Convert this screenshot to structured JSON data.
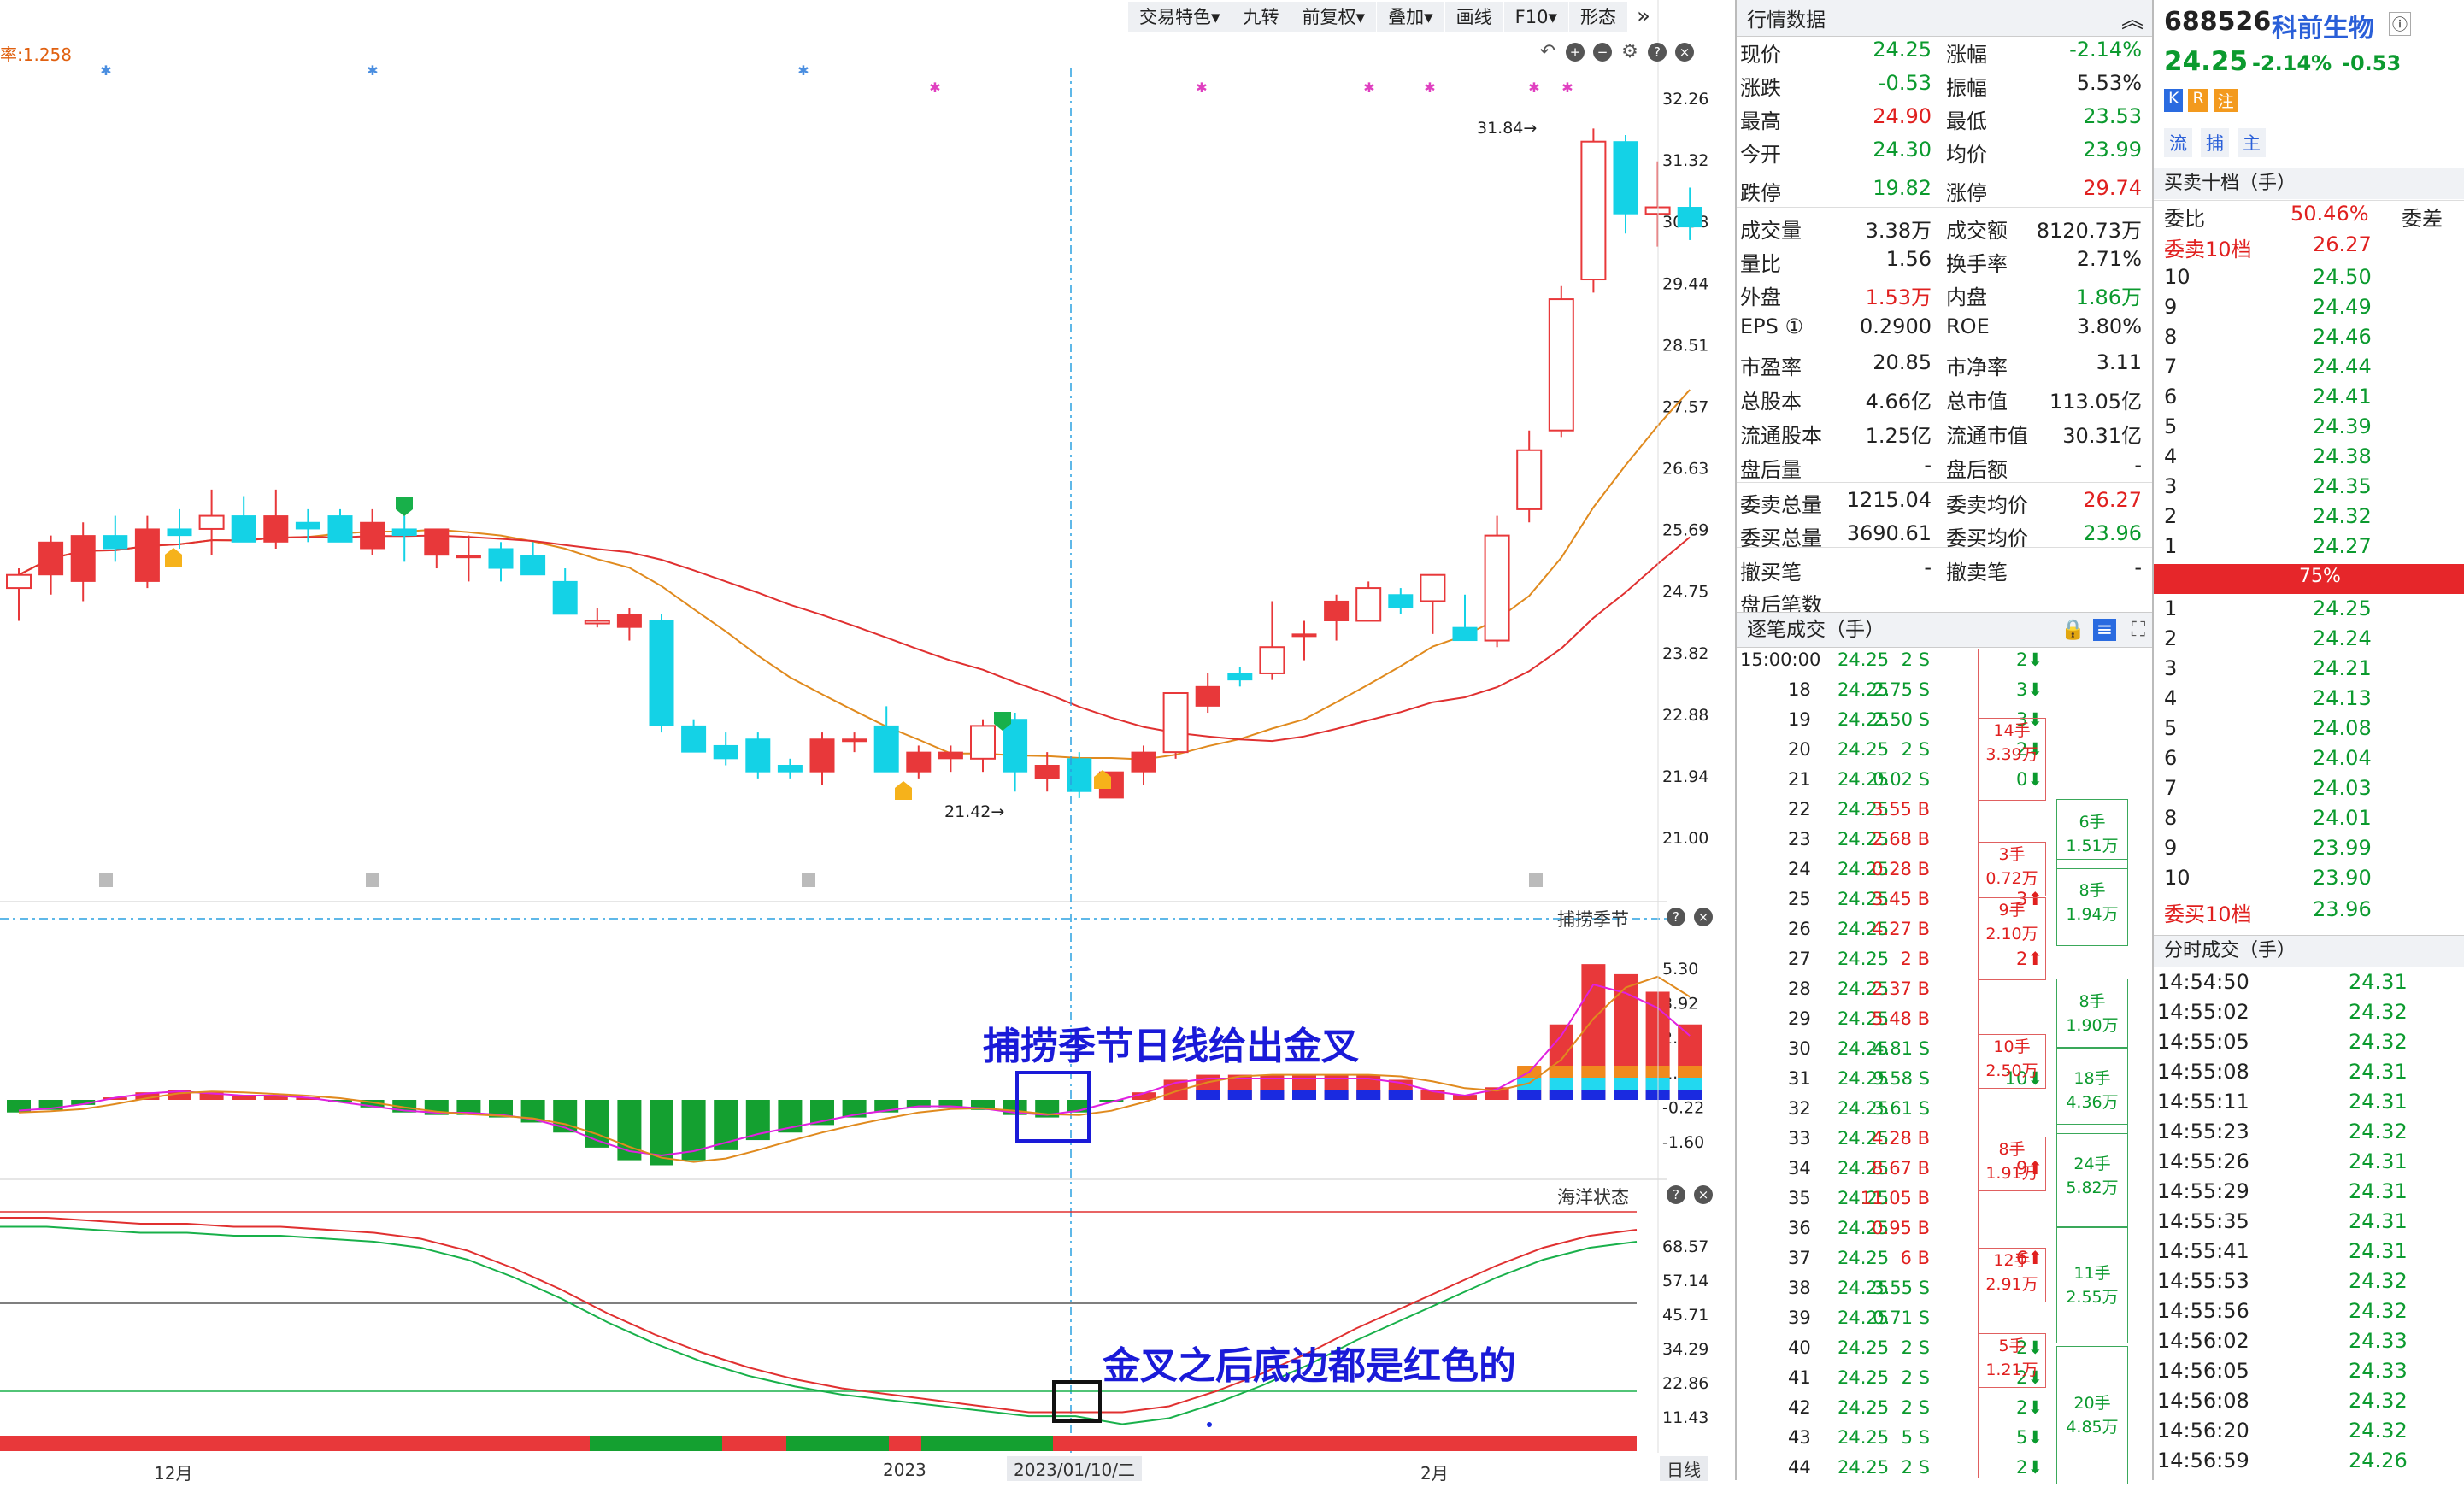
{
  "toolbar": {
    "items": [
      "交易特色▾",
      "九转",
      "前复权▾",
      "叠加▾",
      "画线",
      "F10▾",
      "形态"
    ],
    "more": "»"
  },
  "left_label": "率:1.258",
  "main_chart": {
    "y_ticks": [
      "32.26",
      "31.32",
      "30.38",
      "29.44",
      "28.51",
      "27.57",
      "26.63",
      "25.69",
      "24.75",
      "23.82",
      "22.88",
      "21.94",
      "21.00"
    ],
    "high_label": "31.84",
    "low_label": "21.42",
    "candles": [
      {
        "o": 24.8,
        "h": 25.1,
        "l": 24.3,
        "c": 25.0
      },
      {
        "o": 25.0,
        "h": 25.6,
        "l": 24.7,
        "c": 25.5
      },
      {
        "o": 24.9,
        "h": 25.8,
        "l": 24.6,
        "c": 25.6
      },
      {
        "o": 25.6,
        "h": 25.9,
        "l": 25.2,
        "c": 25.4
      },
      {
        "o": 24.9,
        "h": 25.9,
        "l": 24.8,
        "c": 25.7
      },
      {
        "o": 25.7,
        "h": 26.0,
        "l": 25.4,
        "c": 25.6
      },
      {
        "o": 25.7,
        "h": 26.3,
        "l": 25.3,
        "c": 25.9
      },
      {
        "o": 25.9,
        "h": 26.2,
        "l": 25.5,
        "c": 25.5
      },
      {
        "o": 25.5,
        "h": 26.3,
        "l": 25.4,
        "c": 25.9
      },
      {
        "o": 25.8,
        "h": 26.0,
        "l": 25.5,
        "c": 25.7
      },
      {
        "o": 25.9,
        "h": 26.0,
        "l": 25.5,
        "c": 25.5
      },
      {
        "o": 25.4,
        "h": 26.0,
        "l": 25.3,
        "c": 25.8
      },
      {
        "o": 25.7,
        "h": 25.9,
        "l": 25.2,
        "c": 25.6
      },
      {
        "o": 25.3,
        "h": 25.7,
        "l": 25.1,
        "c": 25.7
      },
      {
        "o": 25.3,
        "h": 25.6,
        "l": 24.9,
        "c": 25.3
      },
      {
        "o": 25.4,
        "h": 25.5,
        "l": 24.9,
        "c": 25.1
      },
      {
        "o": 25.3,
        "h": 25.5,
        "l": 25.0,
        "c": 25.0
      },
      {
        "o": 24.9,
        "h": 25.1,
        "l": 24.4,
        "c": 24.4
      },
      {
        "o": 24.3,
        "h": 24.5,
        "l": 24.2,
        "c": 24.3
      },
      {
        "o": 24.2,
        "h": 24.5,
        "l": 24.0,
        "c": 24.4
      },
      {
        "o": 24.3,
        "h": 24.4,
        "l": 22.6,
        "c": 22.7
      },
      {
        "o": 22.7,
        "h": 22.8,
        "l": 22.3,
        "c": 22.3
      },
      {
        "o": 22.4,
        "h": 22.6,
        "l": 22.1,
        "c": 22.2
      },
      {
        "o": 22.5,
        "h": 22.6,
        "l": 21.9,
        "c": 22.0
      },
      {
        "o": 22.1,
        "h": 22.2,
        "l": 21.9,
        "c": 22.0
      },
      {
        "o": 22.0,
        "h": 22.6,
        "l": 21.8,
        "c": 22.5
      },
      {
        "o": 22.5,
        "h": 22.6,
        "l": 22.3,
        "c": 22.5
      },
      {
        "o": 22.7,
        "h": 23.0,
        "l": 22.0,
        "c": 22.0
      },
      {
        "o": 22.0,
        "h": 22.4,
        "l": 21.9,
        "c": 22.3
      },
      {
        "o": 22.2,
        "h": 22.4,
        "l": 22.0,
        "c": 22.3
      },
      {
        "o": 22.2,
        "h": 22.8,
        "l": 22.0,
        "c": 22.7
      },
      {
        "o": 22.8,
        "h": 22.9,
        "l": 21.7,
        "c": 22.0
      },
      {
        "o": 21.9,
        "h": 22.3,
        "l": 21.7,
        "c": 22.1
      },
      {
        "o": 22.2,
        "h": 22.3,
        "l": 21.6,
        "c": 21.7
      },
      {
        "o": 21.6,
        "h": 22.0,
        "l": 21.6,
        "c": 22.0
      },
      {
        "o": 22.0,
        "h": 22.4,
        "l": 21.8,
        "c": 22.3
      },
      {
        "o": 22.3,
        "h": 23.2,
        "l": 22.2,
        "c": 23.2
      },
      {
        "o": 23.0,
        "h": 23.5,
        "l": 22.9,
        "c": 23.3
      },
      {
        "o": 23.5,
        "h": 23.6,
        "l": 23.3,
        "c": 23.4
      },
      {
        "o": 23.5,
        "h": 24.6,
        "l": 23.4,
        "c": 23.9
      },
      {
        "o": 24.1,
        "h": 24.3,
        "l": 23.7,
        "c": 24.1
      },
      {
        "o": 24.3,
        "h": 24.7,
        "l": 24.0,
        "c": 24.6
      },
      {
        "o": 24.3,
        "h": 24.9,
        "l": 24.3,
        "c": 24.8
      },
      {
        "o": 24.7,
        "h": 24.8,
        "l": 24.4,
        "c": 24.5
      },
      {
        "o": 24.6,
        "h": 24.9,
        "l": 24.1,
        "c": 25.0
      },
      {
        "o": 24.2,
        "h": 24.7,
        "l": 24.0,
        "c": 24.0
      },
      {
        "o": 24.0,
        "h": 25.9,
        "l": 23.9,
        "c": 25.6
      },
      {
        "o": 26.0,
        "h": 27.2,
        "l": 25.8,
        "c": 26.9
      },
      {
        "o": 27.2,
        "h": 29.4,
        "l": 27.1,
        "c": 29.2
      },
      {
        "o": 29.5,
        "h": 31.8,
        "l": 29.3,
        "c": 31.6
      },
      {
        "o": 31.6,
        "h": 31.7,
        "l": 30.2,
        "c": 30.5
      },
      {
        "o": 30.5,
        "h": 31.3,
        "l": 30.0,
        "c": 30.6
      },
      {
        "o": 30.6,
        "h": 30.9,
        "l": 30.1,
        "c": 30.3
      }
    ]
  },
  "panel2": {
    "title": "捕捞季节",
    "y_ticks": [
      "5.30",
      "3.92",
      "2.54",
      "1.16",
      "-0.22",
      "-1.60"
    ],
    "annotation": "捕捞季节日线给出金叉"
  },
  "panel3": {
    "title": "海洋状态",
    "y_ticks": [
      "68.57",
      "57.14",
      "45.71",
      "34.29",
      "22.86",
      "11.43"
    ],
    "annotation": "金叉之后底边都是红色的"
  },
  "bottom_axis": {
    "labels": [
      "12月",
      "2023",
      "2023/01/10/二",
      "2月"
    ],
    "period": "日线"
  },
  "quote": {
    "title": "行情数据",
    "rows": [
      [
        "现价",
        "24.25",
        "green",
        "涨幅",
        "-2.14%",
        "green"
      ],
      [
        "涨跌",
        "-0.53",
        "green",
        "振幅",
        "5.53%",
        "black"
      ],
      [
        "最高",
        "24.90",
        "red",
        "最低",
        "23.53",
        "green"
      ],
      [
        "今开",
        "24.30",
        "green",
        "均价",
        "23.99",
        "green"
      ],
      [
        "跌停",
        "19.82",
        "green",
        "涨停",
        "29.74",
        "red"
      ],
      [
        "成交量",
        "3.38万",
        "black",
        "成交额",
        "8120.73万",
        "black"
      ],
      [
        "量比",
        "1.56",
        "black",
        "换手率",
        "2.71%",
        "black"
      ],
      [
        "外盘",
        "1.53万",
        "red",
        "内盘",
        "1.86万",
        "green"
      ],
      [
        "EPS ①",
        "0.2900",
        "black",
        "ROE",
        "3.80%",
        "black"
      ],
      [
        "市盈率",
        "20.85",
        "black",
        "市净率",
        "3.11",
        "black"
      ],
      [
        "总股本",
        "4.66亿",
        "black",
        "总市值",
        "113.05亿",
        "black"
      ],
      [
        "流通股本",
        "1.25亿",
        "black",
        "流通市值",
        "30.31亿",
        "black"
      ],
      [
        "盘后量",
        "-",
        "black",
        "盘后额",
        "-",
        "black"
      ],
      [
        "委卖总量",
        "1215.04",
        "black",
        "委卖均价",
        "26.27",
        "red"
      ],
      [
        "委买总量",
        "3690.61",
        "black",
        "委买均价",
        "23.96",
        "green"
      ],
      [
        "撤买笔",
        "-",
        "black",
        "撤卖笔",
        "-",
        "black"
      ],
      [
        "盘后笔数",
        "",
        "black",
        "",
        "",
        ""
      ]
    ],
    "trades_title": "逐笔成交（手）",
    "trades": [
      [
        "15:00:00",
        "24.25",
        "2 S",
        "2⬇"
      ],
      [
        "18",
        "24.25",
        "2.75 S",
        "3⬇"
      ],
      [
        "19",
        "24.25",
        "2.50 S",
        "3⬇"
      ],
      [
        "20",
        "24.25",
        "2 S",
        "2⬇"
      ],
      [
        "21",
        "24.25",
        "0.02 S",
        "0⬇"
      ],
      [
        "22",
        "24.25",
        "3.55 B",
        ""
      ],
      [
        "23",
        "24.25",
        "2.68 B",
        ""
      ],
      [
        "24",
        "24.25",
        "0.28 B",
        ""
      ],
      [
        "25",
        "24.25",
        "3.45 B",
        "3⬆"
      ],
      [
        "26",
        "24.25",
        "4.27 B",
        ""
      ],
      [
        "27",
        "24.25",
        "2 B",
        "2⬆"
      ],
      [
        "28",
        "24.25",
        "2.37 B",
        ""
      ],
      [
        "29",
        "24.25",
        "5.48 B",
        ""
      ],
      [
        "30",
        "24.25",
        "4.81 S",
        ""
      ],
      [
        "31",
        "24.25",
        "9.58 S",
        "10⬇"
      ],
      [
        "32",
        "24.25",
        "3.61 S",
        ""
      ],
      [
        "33",
        "24.25",
        "4.28 B",
        ""
      ],
      [
        "34",
        "24.25",
        "8.67 B",
        "9⬆"
      ],
      [
        "35",
        "24.25",
        "11.05 B",
        ""
      ],
      [
        "36",
        "24.25",
        "0.95 B",
        ""
      ],
      [
        "37",
        "24.25",
        "6 B",
        "6⬆"
      ],
      [
        "38",
        "24.25",
        "3.55 S",
        ""
      ],
      [
        "39",
        "24.25",
        "0.71 S",
        ""
      ],
      [
        "40",
        "24.25",
        "2 S",
        "2⬇"
      ],
      [
        "41",
        "24.25",
        "2 S",
        "2⬇"
      ],
      [
        "42",
        "24.25",
        "2 S",
        "2⬇"
      ],
      [
        "43",
        "24.25",
        "5 S",
        "5⬇"
      ],
      [
        "44",
        "24.25",
        "2 S",
        "2⬇"
      ]
    ],
    "trade_groups_red": [
      [
        "14手",
        "3.39万"
      ],
      [
        "3手",
        "0.72万"
      ],
      [
        "9手",
        "2.10万"
      ],
      [
        "10手",
        "2.50万"
      ],
      [
        "8手",
        "1.91万"
      ],
      [
        "12手",
        "2.91万"
      ],
      [
        "5手",
        "1.21万"
      ]
    ],
    "trade_groups_green": [
      [
        "6手",
        "1.51万"
      ],
      [
        "8手",
        "1.94万"
      ],
      [
        "8手",
        "1.90万"
      ],
      [
        "18手",
        "4.36万"
      ],
      [
        "24手",
        "5.82万"
      ],
      [
        "11手",
        "2.55万"
      ],
      [
        "20手",
        "4.85万"
      ]
    ]
  },
  "stock": {
    "code": "688526",
    "name": "科前生物",
    "price": "24.25",
    "change_pct": "-2.14%",
    "change": "-0.53",
    "badges": [
      "K",
      "R",
      "注"
    ],
    "tags": [
      "流",
      "捕",
      "主"
    ]
  },
  "depth": {
    "title": "买卖十档（手）",
    "weibi_label": "委比",
    "weibi": "50.46%",
    "weicha_label": "委差",
    "sell_label": "委卖10档",
    "sell_avg": "26.27",
    "sells": [
      [
        "10",
        "24.50"
      ],
      [
        "9",
        "24.49"
      ],
      [
        "8",
        "24.46"
      ],
      [
        "7",
        "24.44"
      ],
      [
        "6",
        "24.41"
      ],
      [
        "5",
        "24.39"
      ],
      [
        "4",
        "24.38"
      ],
      [
        "3",
        "24.35"
      ],
      [
        "2",
        "24.32"
      ],
      [
        "1",
        "24.27"
      ]
    ],
    "bar_pct": "75%",
    "buys": [
      [
        "1",
        "24.25"
      ],
      [
        "2",
        "24.24"
      ],
      [
        "3",
        "24.21"
      ],
      [
        "4",
        "24.13"
      ],
      [
        "5",
        "24.08"
      ],
      [
        "6",
        "24.04"
      ],
      [
        "7",
        "24.03"
      ],
      [
        "8",
        "24.01"
      ],
      [
        "9",
        "23.99"
      ],
      [
        "10",
        "23.90"
      ]
    ],
    "buy_label": "委买10档",
    "buy_avg": "23.96",
    "tick_title": "分时成交（手）",
    "ticks": [
      [
        "14:54:50",
        "24.31"
      ],
      [
        "14:55:02",
        "24.32"
      ],
      [
        "14:55:05",
        "24.32"
      ],
      [
        "14:55:08",
        "24.31"
      ],
      [
        "14:55:11",
        "24.31"
      ],
      [
        "14:55:23",
        "24.32"
      ],
      [
        "14:55:26",
        "24.31"
      ],
      [
        "14:55:29",
        "24.31"
      ],
      [
        "14:55:35",
        "24.31"
      ],
      [
        "14:55:41",
        "24.31"
      ],
      [
        "14:55:53",
        "24.32"
      ],
      [
        "14:55:56",
        "24.32"
      ],
      [
        "14:56:02",
        "24.33"
      ],
      [
        "14:56:05",
        "24.33"
      ],
      [
        "14:56:08",
        "24.32"
      ],
      [
        "14:56:20",
        "24.32"
      ],
      [
        "14:56:59",
        "24.26"
      ]
    ]
  }
}
